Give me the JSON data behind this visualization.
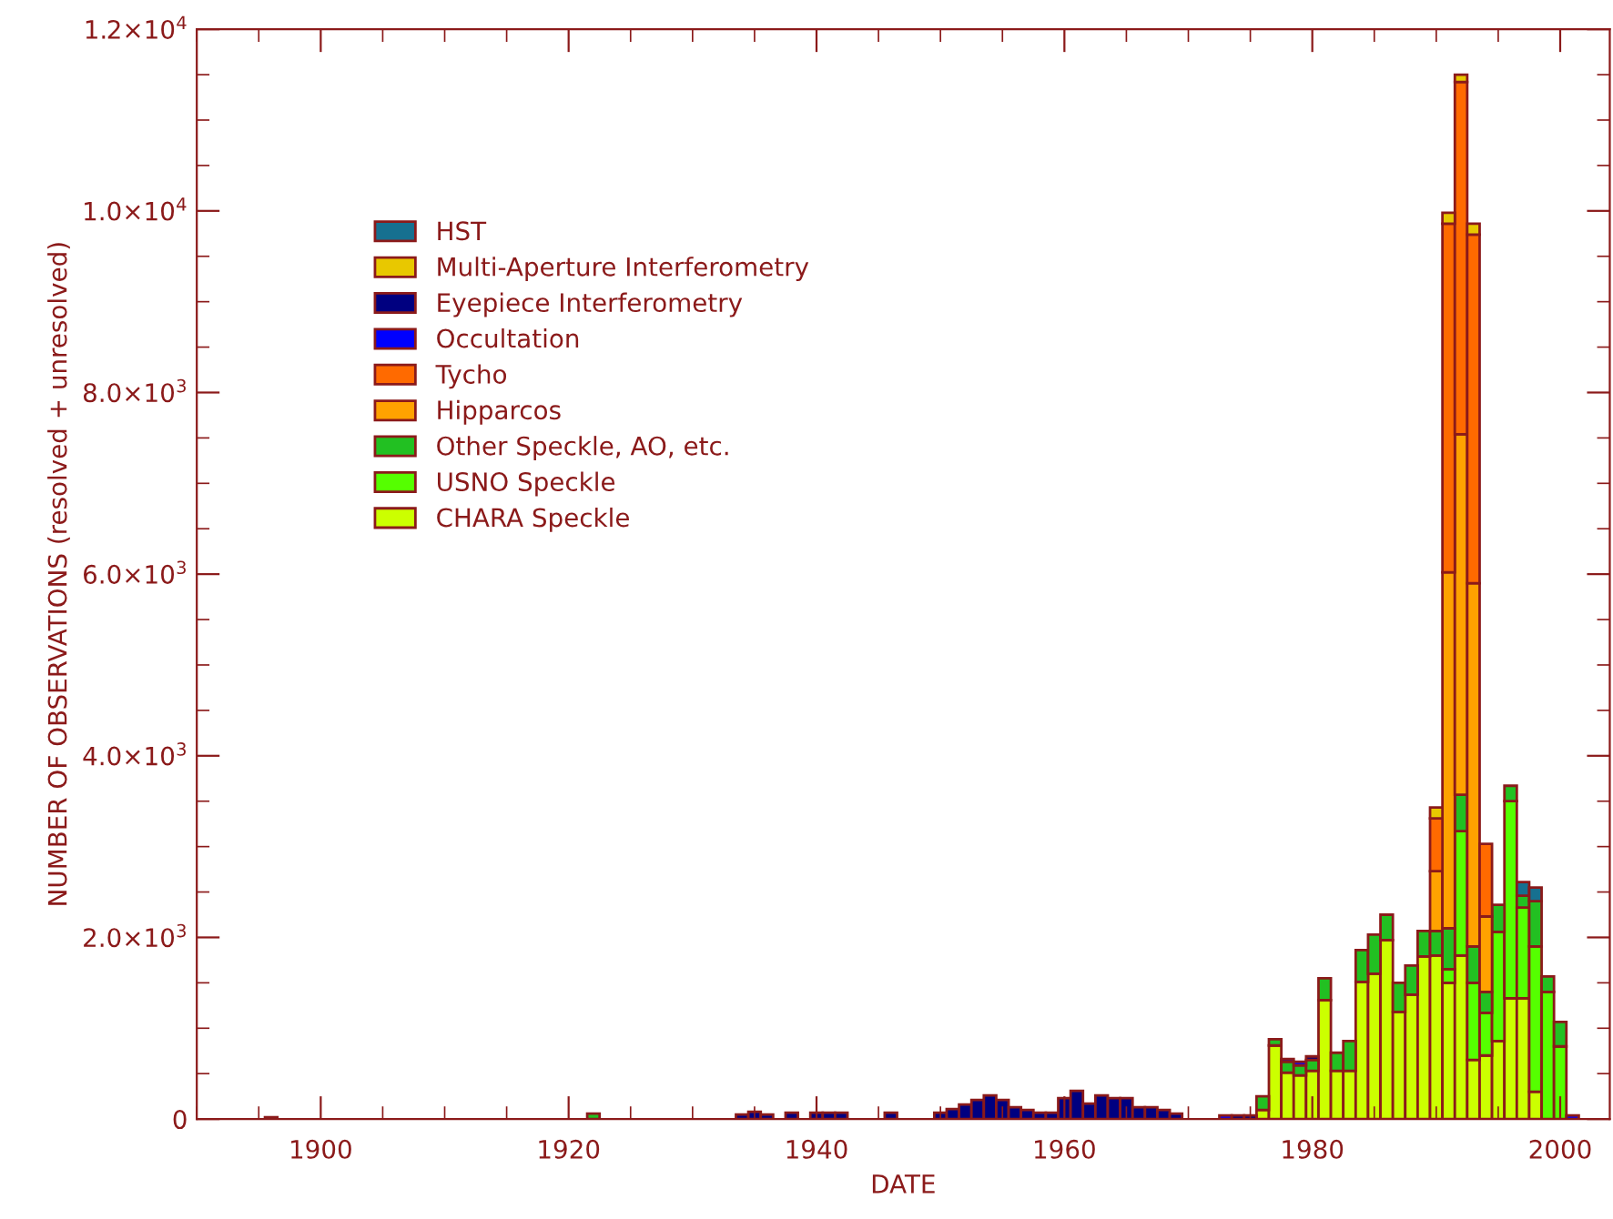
{
  "chart_data": {
    "type": "bar",
    "stacked": true,
    "xlabel": "DATE",
    "ylabel": "NUMBER OF OBSERVATIONS (resolved + unresolved)",
    "xlim": [
      1890,
      2004
    ],
    "xticks": [
      1900,
      1920,
      1940,
      1960,
      1980,
      2000
    ],
    "ylim": [
      0,
      12000
    ],
    "yticks": [
      0,
      {
        "value": 2000,
        "label": "2.0×10$^{3}$"
      },
      {
        "value": 4000,
        "label": "4.0×10$^{3}$"
      },
      {
        "value": 6000,
        "label": "6.0×10$^{3}$"
      },
      {
        "value": 8000,
        "label": "8.0×10$^{3}$"
      },
      {
        "value": 10000,
        "label": "1.0×10$^{4}$"
      },
      {
        "value": 12000,
        "label": "1.2×10$^{4}$"
      }
    ],
    "grid": false,
    "legend": "top left",
    "x": [
      1896,
      1922,
      1934,
      1935,
      1936,
      1938,
      1940,
      1941,
      1942,
      1946,
      1950,
      1951,
      1952,
      1953,
      1954,
      1955,
      1956,
      1957,
      1958,
      1959,
      1960,
      1961,
      1962,
      1963,
      1964,
      1965,
      1966,
      1967,
      1968,
      1969,
      1970,
      1971,
      1972,
      1973,
      1974,
      1975,
      1976,
      1977,
      1978,
      1979,
      1980,
      1981,
      1982,
      1983,
      1984,
      1985,
      1986,
      1987,
      1988,
      1989,
      1990,
      1991,
      1992,
      1993,
      1994,
      1995,
      1996,
      1997,
      1998,
      1999,
      2000,
      2001
    ],
    "series": [
      {
        "name": "CHARA Speckle",
        "color": "#ccff00",
        "values": [
          null,
          null,
          null,
          null,
          null,
          null,
          null,
          null,
          null,
          null,
          null,
          null,
          null,
          null,
          null,
          null,
          null,
          null,
          null,
          null,
          null,
          null,
          null,
          null,
          null,
          null,
          null,
          null,
          null,
          null,
          null,
          null,
          null,
          null,
          null,
          null,
          100,
          810,
          510,
          480,
          530,
          1310,
          530,
          530,
          1510,
          1600,
          1970,
          1180,
          1370,
          1790,
          1800,
          1500,
          1800,
          650,
          700,
          860,
          1330,
          1330,
          300,
          null,
          null,
          null
        ]
      },
      {
        "name": "USNO Speckle",
        "color": "#55ff00",
        "values": [
          null,
          null,
          null,
          null,
          null,
          null,
          null,
          null,
          null,
          null,
          null,
          null,
          null,
          null,
          null,
          null,
          null,
          null,
          null,
          null,
          null,
          null,
          null,
          null,
          null,
          null,
          null,
          null,
          null,
          null,
          null,
          null,
          null,
          null,
          null,
          null,
          null,
          null,
          null,
          null,
          null,
          null,
          null,
          null,
          null,
          null,
          null,
          null,
          null,
          null,
          null,
          150,
          1370,
          850,
          470,
          1200,
          2170,
          1000,
          1600,
          1400,
          800,
          null
        ]
      },
      {
        "name": "Other Speckle, AO, etc.",
        "color": "#22c022",
        "values": [
          20,
          60,
          null,
          null,
          null,
          null,
          null,
          null,
          null,
          null,
          null,
          null,
          null,
          null,
          null,
          null,
          null,
          null,
          null,
          null,
          null,
          null,
          null,
          null,
          null,
          null,
          null,
          null,
          null,
          null,
          null,
          null,
          null,
          null,
          null,
          null,
          150,
          70,
          120,
          110,
          120,
          240,
          200,
          330,
          350,
          430,
          280,
          320,
          320,
          280,
          270,
          450,
          400,
          400,
          230,
          300,
          170,
          130,
          500,
          170,
          270,
          null
        ]
      },
      {
        "name": "Hipparcos",
        "color": "#ffa200",
        "values": [
          null,
          null,
          null,
          null,
          null,
          null,
          null,
          null,
          null,
          null,
          null,
          null,
          null,
          null,
          null,
          null,
          null,
          null,
          null,
          null,
          null,
          null,
          null,
          null,
          null,
          null,
          null,
          null,
          null,
          null,
          null,
          null,
          null,
          null,
          null,
          null,
          null,
          null,
          null,
          null,
          null,
          null,
          null,
          null,
          null,
          null,
          null,
          null,
          null,
          null,
          660,
          3920,
          3970,
          4000,
          830,
          null,
          null,
          null,
          null,
          null,
          null,
          null
        ]
      },
      {
        "name": "Tycho",
        "color": "#ff6a00",
        "values": [
          null,
          null,
          null,
          null,
          null,
          null,
          null,
          null,
          null,
          null,
          null,
          null,
          null,
          null,
          null,
          null,
          null,
          null,
          null,
          null,
          null,
          null,
          null,
          null,
          null,
          null,
          null,
          null,
          null,
          null,
          null,
          null,
          null,
          null,
          null,
          null,
          null,
          null,
          null,
          null,
          null,
          null,
          null,
          null,
          null,
          null,
          null,
          null,
          null,
          null,
          580,
          3840,
          3880,
          3840,
          800,
          null,
          null,
          null,
          null,
          null,
          null,
          null
        ]
      },
      {
        "name": "Occultation",
        "color": "#0000ff",
        "values": [
          null,
          null,
          null,
          null,
          null,
          null,
          null,
          null,
          null,
          null,
          null,
          null,
          null,
          null,
          null,
          null,
          null,
          null,
          null,
          null,
          null,
          null,
          null,
          null,
          null,
          null,
          null,
          null,
          null,
          null,
          null,
          null,
          null,
          40,
          null,
          null,
          null,
          null,
          30,
          40,
          null,
          null,
          null,
          null,
          null,
          null,
          null,
          null,
          null,
          null,
          null,
          null,
          null,
          null,
          null,
          null,
          null,
          null,
          null,
          null,
          null,
          40
        ]
      },
      {
        "name": "Eyepiece Interferometry",
        "color": "#000080",
        "values": [
          null,
          null,
          50,
          80,
          50,
          70,
          70,
          70,
          70,
          70,
          70,
          110,
          160,
          210,
          260,
          210,
          130,
          100,
          70,
          70,
          230,
          310,
          170,
          260,
          230,
          230,
          130,
          130,
          100,
          60,
          null,
          null,
          null,
          null,
          40,
          40,
          null,
          null,
          null,
          null,
          40,
          null,
          null,
          null,
          null,
          null,
          null,
          null,
          null,
          null,
          null,
          null,
          null,
          null,
          null,
          null,
          null,
          null,
          null,
          null,
          null,
          null
        ]
      },
      {
        "name": "Multi-Aperture Interferometry",
        "color": "#e8c800",
        "values": [
          null,
          null,
          null,
          null,
          null,
          null,
          null,
          null,
          null,
          null,
          null,
          null,
          null,
          null,
          null,
          null,
          null,
          null,
          null,
          null,
          null,
          null,
          null,
          null,
          null,
          null,
          null,
          null,
          null,
          null,
          null,
          null,
          null,
          null,
          null,
          null,
          null,
          null,
          null,
          null,
          null,
          null,
          null,
          null,
          null,
          null,
          null,
          null,
          null,
          null,
          120,
          120,
          80,
          120,
          null,
          null,
          null,
          null,
          null,
          null,
          null,
          null
        ]
      },
      {
        "name": "HST",
        "color": "#167090",
        "values": [
          null,
          null,
          null,
          null,
          null,
          null,
          null,
          null,
          null,
          null,
          null,
          null,
          null,
          null,
          null,
          null,
          null,
          null,
          null,
          null,
          null,
          null,
          null,
          null,
          null,
          null,
          null,
          null,
          null,
          null,
          null,
          null,
          null,
          null,
          null,
          null,
          null,
          null,
          null,
          null,
          null,
          null,
          null,
          null,
          null,
          null,
          null,
          null,
          null,
          null,
          null,
          null,
          null,
          null,
          null,
          null,
          null,
          150,
          150,
          null,
          null,
          null
        ]
      }
    ]
  }
}
